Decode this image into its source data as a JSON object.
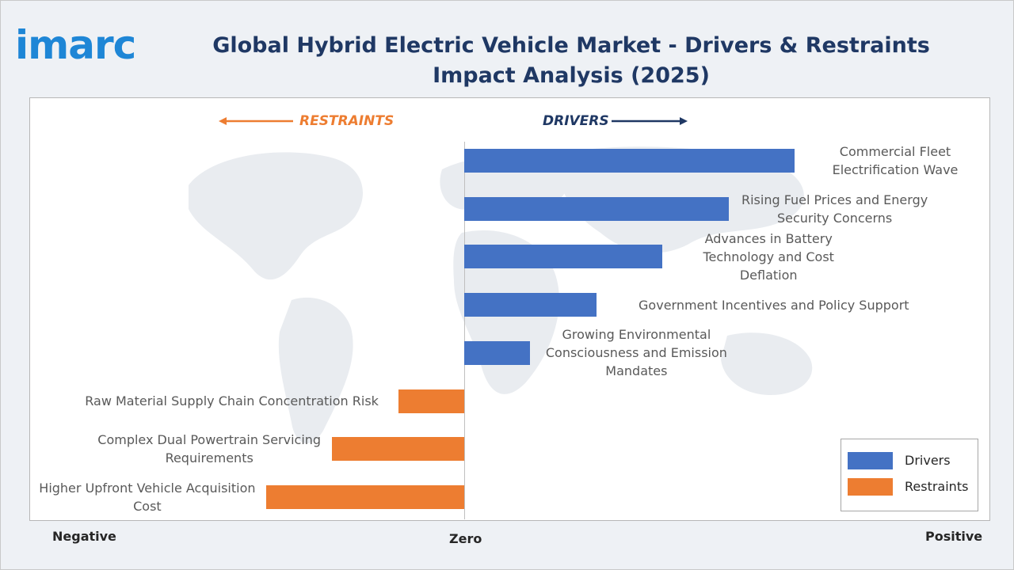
{
  "brand": {
    "logo_text": "imarc"
  },
  "title": "Global Hybrid Electric Vehicle Market - Drivers & Restraints Impact Analysis (2025)",
  "colors": {
    "drivers": "#4472c4",
    "restraints": "#ed7d31",
    "title": "#1f3864",
    "logo": "#1e86d6"
  },
  "chart_data": {
    "type": "bar",
    "orientation": "horizontal",
    "direction_labels": {
      "restraints": "RESTRAINTS",
      "drivers": "DRIVERS"
    },
    "axis_labels": {
      "negative": "Negative",
      "zero": "Zero",
      "positive": "Positive"
    },
    "series": [
      {
        "name": "Drivers",
        "items": [
          {
            "label": "Commercial Fleet Electrification Wave",
            "value": 5
          },
          {
            "label": "Rising Fuel Prices and Energy Security Concerns",
            "value": 4
          },
          {
            "label": "Advances in Battery Technology and Cost Deflation",
            "value": 3
          },
          {
            "label": "Government Incentives and Policy Support",
            "value": 2
          },
          {
            "label": "Growing Environmental Consciousness and Emission Mandates",
            "value": 1
          }
        ]
      },
      {
        "name": "Restraints",
        "items": [
          {
            "label": "Raw Material Supply Chain Concentration Risk",
            "value": -1
          },
          {
            "label": "Complex Dual Powertrain Servicing Requirements",
            "value": -2
          },
          {
            "label": "Higher Upfront Vehicle Acquisition Cost",
            "value": -3
          }
        ]
      }
    ],
    "legend": [
      "Drivers",
      "Restraints"
    ],
    "legend_position": "bottom-right",
    "grid": false
  }
}
